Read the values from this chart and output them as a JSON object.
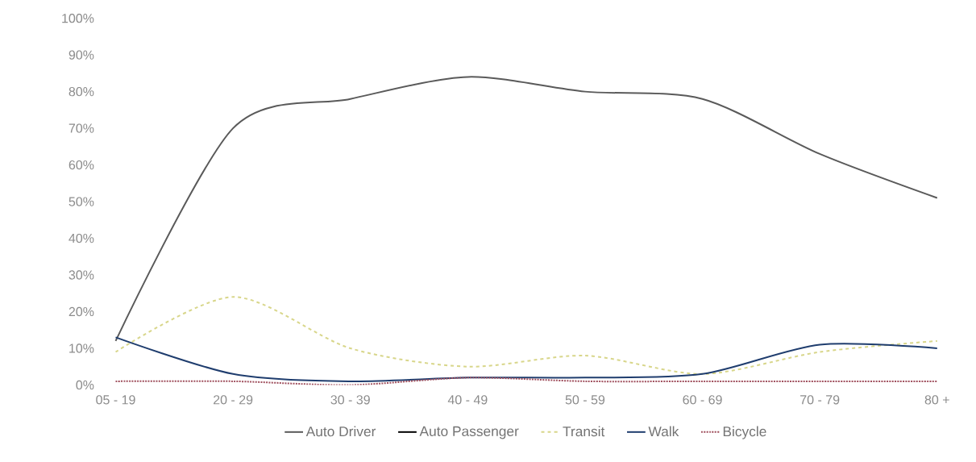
{
  "chart_data": {
    "type": "line",
    "categories": [
      "05 - 19",
      "20 - 29",
      "30 - 39",
      "40 - 49",
      "50 - 59",
      "60 - 69",
      "70 - 79",
      "80 +"
    ],
    "series": [
      {
        "name": "Auto Driver",
        "color": "#5a5a5a",
        "line_style": "solid",
        "values": [
          12,
          70,
          78,
          84,
          80,
          78,
          63,
          51
        ]
      },
      {
        "name": "Auto Passenger",
        "values": [
          null,
          null,
          null,
          null,
          null,
          null,
          null,
          null
        ]
      },
      {
        "name": "Transit",
        "color": "#d8d68a",
        "line_style": "dashed",
        "values": [
          9,
          24,
          10,
          5,
          8,
          3,
          9,
          12
        ]
      },
      {
        "name": "Walk",
        "color": "#1f3d6e",
        "line_style": "solid",
        "values": [
          13,
          3,
          1,
          2,
          2,
          3,
          11,
          10
        ]
      },
      {
        "name": "Bicycle",
        "color": "#a0505e",
        "line_style": "dotted",
        "values": [
          1,
          1,
          0,
          2,
          1,
          1,
          1,
          1
        ]
      }
    ],
    "ylim": [
      0,
      100
    ],
    "yticks": [
      {
        "value": 0,
        "label": "0%"
      },
      {
        "value": 10,
        "label": "10%"
      },
      {
        "value": 20,
        "label": "20%"
      },
      {
        "value": 30,
        "label": "30%"
      },
      {
        "value": 40,
        "label": "40%"
      },
      {
        "value": 50,
        "label": "50%"
      },
      {
        "value": 60,
        "label": "60%"
      },
      {
        "value": 70,
        "label": "70%"
      },
      {
        "value": 80,
        "label": "80%"
      },
      {
        "value": 90,
        "label": "90%"
      },
      {
        "value": 100,
        "label": "100%"
      }
    ],
    "legend": "bottom",
    "marker": "none"
  }
}
